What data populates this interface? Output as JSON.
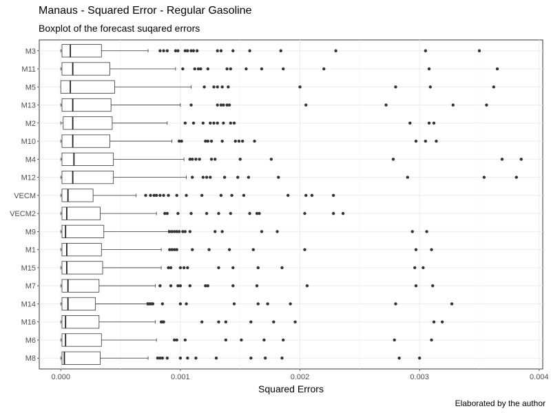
{
  "title": "Manaus - Squared Error - Regular Gasoline",
  "subtitle": "Boxplot of the forecast suqared errors",
  "caption": "Elaborated by the author",
  "chart_data": {
    "type": "boxplot",
    "orientation": "horizontal",
    "xlabel": "Squared Errors",
    "ylabel": "",
    "xlim": [
      -0.00018,
      0.00403
    ],
    "x_ticks": [
      0,
      0.001,
      0.002,
      0.003,
      0.004
    ],
    "x_tick_labels": [
      "0.000",
      "0.001",
      "0.002",
      "0.003",
      "0.004"
    ],
    "grid": true,
    "categories": [
      "M3",
      "M11",
      "M5",
      "M13",
      "M2",
      "M10",
      "M4",
      "M12",
      "VECM",
      "VECM2",
      "M9",
      "M1",
      "M15",
      "M7",
      "M14",
      "M16",
      "M6",
      "M8"
    ],
    "boxes": [
      {
        "name": "M3",
        "whisker_low": 0.0,
        "q1": 1e-05,
        "median": 8e-05,
        "q3": 0.00034,
        "whisker_high": 0.00073,
        "outliers": [
          0.00083,
          0.00086,
          0.00089,
          0.00096,
          0.00098,
          0.00104,
          0.00106,
          0.00109,
          0.00111,
          0.00114,
          0.00131,
          0.00134,
          0.00144,
          0.00158,
          0.00184,
          0.0023,
          0.00305,
          0.0035
        ]
      },
      {
        "name": "M11",
        "whisker_low": 0.0,
        "q1": 1e-05,
        "median": 0.0001,
        "q3": 0.00041,
        "whisker_high": 0.00096,
        "outliers": [
          0.00102,
          0.00112,
          0.00115,
          0.00117,
          0.00123,
          0.00139,
          0.00142,
          0.00155,
          0.00168,
          0.00186,
          0.0022,
          0.00308,
          0.00365
        ]
      },
      {
        "name": "M5",
        "whisker_low": 0.0,
        "q1": 0.0,
        "median": 8e-05,
        "q3": 0.00045,
        "whisker_high": 0.00109,
        "outliers": [
          0.0012,
          0.00128,
          0.00131,
          0.00135,
          0.0014,
          0.002,
          0.0028,
          0.00309,
          0.00362
        ]
      },
      {
        "name": "M13",
        "whisker_low": 0.0,
        "q1": 1e-05,
        "median": 0.0001,
        "q3": 0.00042,
        "whisker_high": 0.001,
        "outliers": [
          0.00109,
          0.00131,
          0.00134,
          0.00136,
          0.00139,
          0.00141,
          0.00205,
          0.00272,
          0.00328,
          0.00356
        ]
      },
      {
        "name": "M2",
        "whisker_low": 0.0,
        "q1": 2e-05,
        "median": 0.0001,
        "q3": 0.00043,
        "whisker_high": 0.00089,
        "outliers": [
          0.00104,
          0.00111,
          0.00119,
          0.00125,
          0.00128,
          0.00131,
          0.00136,
          0.00142,
          0.00145,
          0.00292,
          0.00308,
          0.00312
        ]
      },
      {
        "name": "M10",
        "whisker_low": 0.0,
        "q1": 1e-05,
        "median": 0.0001,
        "q3": 0.00041,
        "whisker_high": 0.00093,
        "outliers": [
          0.00099,
          0.00101,
          0.00121,
          0.00123,
          0.00126,
          0.00135,
          0.00146,
          0.00149,
          0.00152,
          0.00162,
          0.00297,
          0.00305,
          0.00314
        ]
      },
      {
        "name": "M4",
        "whisker_low": 0.0,
        "q1": 1e-05,
        "median": 0.00011,
        "q3": 0.00044,
        "whisker_high": 0.00103,
        "outliers": [
          0.00108,
          0.0011,
          0.00113,
          0.00116,
          0.00126,
          0.00129,
          0.0015,
          0.00176,
          0.00278,
          0.00369,
          0.00385
        ]
      },
      {
        "name": "M12",
        "whisker_low": 0.0,
        "q1": 1e-05,
        "median": 0.0001,
        "q3": 0.00044,
        "whisker_high": 0.00105,
        "outliers": [
          0.0011,
          0.00119,
          0.00122,
          0.00125,
          0.00137,
          0.00148,
          0.00157,
          0.00182,
          0.0029,
          0.00354,
          0.00381
        ]
      },
      {
        "name": "VECM",
        "whisker_low": 0.0,
        "q1": 1e-05,
        "median": 6e-05,
        "q3": 0.00027,
        "whisker_high": 0.00063,
        "outliers": [
          0.00071,
          0.00075,
          0.00078,
          0.0008,
          0.00083,
          0.00086,
          0.0009,
          0.00097,
          0.00105,
          0.00118,
          0.00134,
          0.00143,
          0.00153,
          0.0019,
          0.00205,
          0.0021,
          0.00228
        ]
      },
      {
        "name": "VECM2",
        "whisker_low": 0.0,
        "q1": 1e-05,
        "median": 5e-05,
        "q3": 0.00033,
        "whisker_high": 0.0008,
        "outliers": [
          0.00087,
          0.00089,
          0.00098,
          0.00109,
          0.00122,
          0.00132,
          0.00142,
          0.00158,
          0.00164,
          0.00166,
          0.00204,
          0.00228,
          0.00236
        ]
      },
      {
        "name": "M9",
        "whisker_low": 0.0,
        "q1": 1e-05,
        "median": 4e-05,
        "q3": 0.00036,
        "whisker_high": 0.0009,
        "outliers": [
          0.00091,
          0.00093,
          0.00095,
          0.00097,
          0.00099,
          0.00102,
          0.00104,
          0.00108,
          0.00129,
          0.00135,
          0.00168,
          0.00181,
          0.00294,
          0.00306
        ]
      },
      {
        "name": "M1",
        "whisker_low": 0.0,
        "q1": 1e-05,
        "median": 5e-05,
        "q3": 0.00034,
        "whisker_high": 0.00084,
        "outliers": [
          0.00091,
          0.00093,
          0.00095,
          0.00097,
          0.0011,
          0.00124,
          0.00141,
          0.00161,
          0.00204,
          0.00297,
          0.0031
        ]
      },
      {
        "name": "M15",
        "whisker_low": 0.0,
        "q1": 1e-05,
        "median": 5e-05,
        "q3": 0.00035,
        "whisker_high": 0.00084,
        "outliers": [
          0.0009,
          0.00092,
          0.001,
          0.00103,
          0.00106,
          0.00132,
          0.00144,
          0.00165,
          0.00185,
          0.00296,
          0.00303
        ]
      },
      {
        "name": "M7",
        "whisker_low": 0.0,
        "q1": 1e-05,
        "median": 6e-05,
        "q3": 0.00032,
        "whisker_high": 0.00079,
        "outliers": [
          0.00083,
          0.00092,
          0.00098,
          0.001,
          0.00108,
          0.00121,
          0.00123,
          0.00144,
          0.00164,
          0.00206,
          0.00297,
          0.00311
        ]
      },
      {
        "name": "M14",
        "whisker_low": 0.0,
        "q1": 1e-05,
        "median": 6e-05,
        "q3": 0.00029,
        "whisker_high": 0.00072,
        "outliers": [
          0.00073,
          0.00074,
          0.00075,
          0.00076,
          0.00077,
          0.00085,
          0.001,
          0.00105,
          0.00145,
          0.00165,
          0.00173,
          0.00192,
          0.0028,
          0.00327
        ]
      },
      {
        "name": "M16",
        "whisker_low": 0.0,
        "q1": 1e-05,
        "median": 4e-05,
        "q3": 0.00032,
        "whisker_high": 0.00079,
        "outliers": [
          0.00084,
          0.00085,
          0.00086,
          0.00118,
          0.00132,
          0.00138,
          0.00159,
          0.00178,
          0.00196,
          0.00312,
          0.00319
        ]
      },
      {
        "name": "M6",
        "whisker_low": 0.0,
        "q1": 1e-05,
        "median": 4e-05,
        "q3": 0.00034,
        "whisker_high": 0.0008,
        "outliers": [
          0.00095,
          0.00097,
          0.00104,
          0.00138,
          0.00151,
          0.0017,
          0.00186,
          0.00279,
          0.0031
        ]
      },
      {
        "name": "M8",
        "whisker_low": 0.0,
        "q1": 1e-05,
        "median": 3e-05,
        "q3": 0.00033,
        "whisker_high": 0.00073,
        "outliers": [
          0.00081,
          0.00083,
          0.00085,
          0.00089,
          0.001,
          0.00106,
          0.00113,
          0.0013,
          0.00159,
          0.00171,
          0.00185,
          0.00283,
          0.003
        ]
      }
    ]
  }
}
